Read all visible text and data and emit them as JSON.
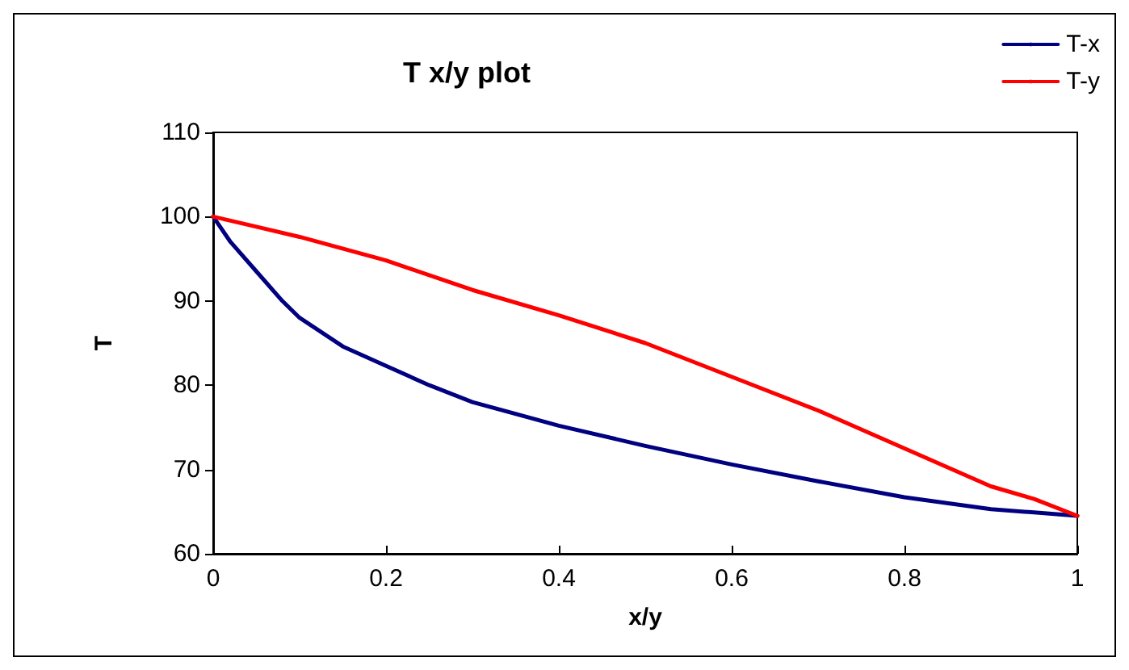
{
  "chart_data": {
    "type": "line",
    "title": "T x/y plot",
    "xlabel": "x/y",
    "ylabel": "T",
    "xlim": [
      0,
      1
    ],
    "xticks": [
      0,
      0.2,
      0.4,
      0.6,
      0.8,
      1
    ],
    "ylim": [
      60,
      110
    ],
    "yticks": [
      60,
      70,
      80,
      90,
      100,
      110
    ],
    "grid": false,
    "legend": "top right",
    "marker": "none",
    "line_style": "solid",
    "series": [
      {
        "name": "T-x",
        "color": "#000080",
        "x": [
          0,
          0.02,
          0.05,
          0.08,
          0.1,
          0.15,
          0.2,
          0.25,
          0.3,
          0.4,
          0.5,
          0.6,
          0.7,
          0.8,
          0.9,
          0.95,
          1
        ],
        "values": [
          100,
          97,
          93.5,
          90,
          88,
          84.6,
          82.3,
          80,
          78,
          75.2,
          72.8,
          70.6,
          68.6,
          66.7,
          65.3,
          64.9,
          64.5
        ]
      },
      {
        "name": "T-y",
        "color": "#ff0000",
        "x": [
          0,
          0.05,
          0.1,
          0.2,
          0.3,
          0.4,
          0.5,
          0.6,
          0.7,
          0.8,
          0.9,
          0.95,
          1
        ],
        "values": [
          100,
          98.8,
          97.6,
          94.8,
          91.3,
          88.3,
          85,
          81,
          77,
          72.5,
          68,
          66.5,
          64.5
        ]
      }
    ]
  }
}
